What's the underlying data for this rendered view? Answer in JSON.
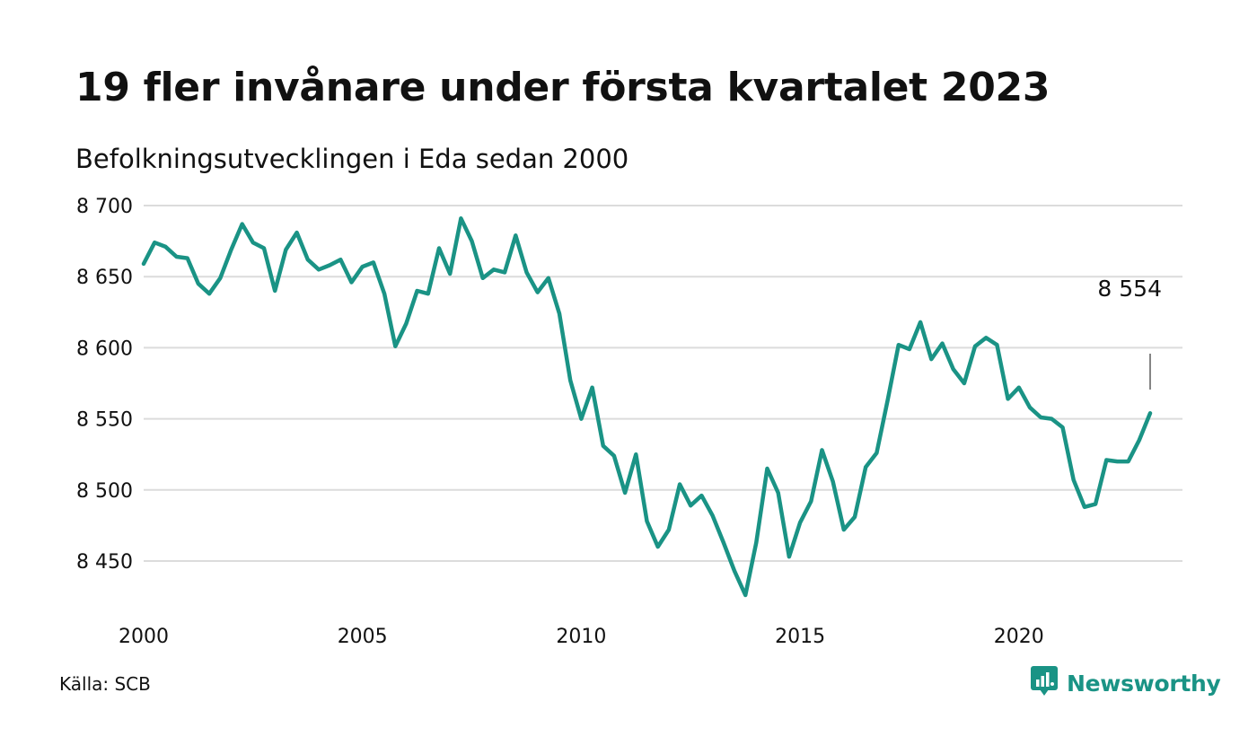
{
  "title": "19 fler invånare under första kvartalet 2023",
  "subtitle": "Befolkningsutvecklingen i Eda sedan 2000",
  "source": "Källa: SCB",
  "brand": {
    "name": "Newsworthy",
    "icon": "newsworthy-logo-icon",
    "color": "#1a9385"
  },
  "colors": {
    "line": "#1a9385",
    "grid": "#dcdcdc",
    "text": "#111111"
  },
  "chart_data": {
    "type": "line",
    "title": "",
    "xlabel": "",
    "ylabel": "",
    "xlim": [
      2000,
      2023.25
    ],
    "ylim": [
      8420,
      8700
    ],
    "grid": true,
    "y_ticks": [
      8700,
      8650,
      8600,
      8550,
      8500,
      8450
    ],
    "y_tick_labels": [
      "8 700",
      "8 650",
      "8 600",
      "8 550",
      "8 500",
      "8 450"
    ],
    "x_ticks": [
      2000,
      2005,
      2010,
      2015,
      2020
    ],
    "x_tick_labels": [
      "2000",
      "2005",
      "2010",
      "2015",
      "2020"
    ],
    "annotation": {
      "text": "8 554",
      "x": 2023.0,
      "y": 8554
    },
    "series": [
      {
        "x": [
          2000.0,
          2000.25,
          2000.5,
          2000.75,
          2001.0,
          2001.25,
          2001.5,
          2001.75,
          2002.0,
          2002.25,
          2002.5,
          2002.75,
          2003.0,
          2003.25,
          2003.5,
          2003.75,
          2004.0,
          2004.25,
          2004.5,
          2004.75,
          2005.0,
          2005.25,
          2005.5,
          2005.75,
          2006.0,
          2006.25,
          2006.5,
          2006.75,
          2007.0,
          2007.25,
          2007.5,
          2007.75,
          2008.0,
          2008.25,
          2008.5,
          2008.75,
          2009.0,
          2009.25,
          2009.5,
          2009.75,
          2010.0,
          2010.25,
          2010.5,
          2010.75,
          2011.0,
          2011.25,
          2011.5,
          2011.75,
          2012.0,
          2012.25,
          2012.5,
          2012.75,
          2013.0,
          2013.25,
          2013.5,
          2013.75,
          2014.0,
          2014.25,
          2014.5,
          2014.75,
          2015.0,
          2015.25,
          2015.5,
          2015.75,
          2016.0,
          2016.25,
          2016.5,
          2016.75,
          2017.0,
          2017.25,
          2017.5,
          2017.75,
          2018.0,
          2018.25,
          2018.5,
          2018.75,
          2019.0,
          2019.25,
          2019.5,
          2019.75,
          2020.0,
          2020.25,
          2020.5,
          2020.75,
          2021.0,
          2021.25,
          2021.5,
          2021.75,
          2022.0,
          2022.25,
          2022.5,
          2022.75,
          2023.0
        ],
        "values": [
          8659,
          8674,
          8671,
          8664,
          8663,
          8645,
          8638,
          8649,
          8669,
          8687,
          8674,
          8670,
          8640,
          8669,
          8681,
          8662,
          8655,
          8658,
          8662,
          8646,
          8657,
          8660,
          8638,
          8601,
          8617,
          8640,
          8638,
          8670,
          8652,
          8691,
          8675,
          8649,
          8655,
          8653,
          8679,
          8653,
          8639,
          8649,
          8624,
          8577,
          8550,
          8572,
          8531,
          8524,
          8498,
          8525,
          8478,
          8460,
          8472,
          8504,
          8489,
          8496,
          8482,
          8463,
          8443,
          8426,
          8463,
          8515,
          8498,
          8453,
          8477,
          8492,
          8528,
          8506,
          8472,
          8481,
          8516,
          8526,
          8563,
          8602,
          8599,
          8618,
          8592,
          8603,
          8585,
          8575,
          8601,
          8607,
          8602,
          8564,
          8572,
          8558,
          8551,
          8550,
          8544,
          8507,
          8488,
          8490,
          8521,
          8520,
          8520,
          8535,
          8554
        ]
      }
    ]
  }
}
